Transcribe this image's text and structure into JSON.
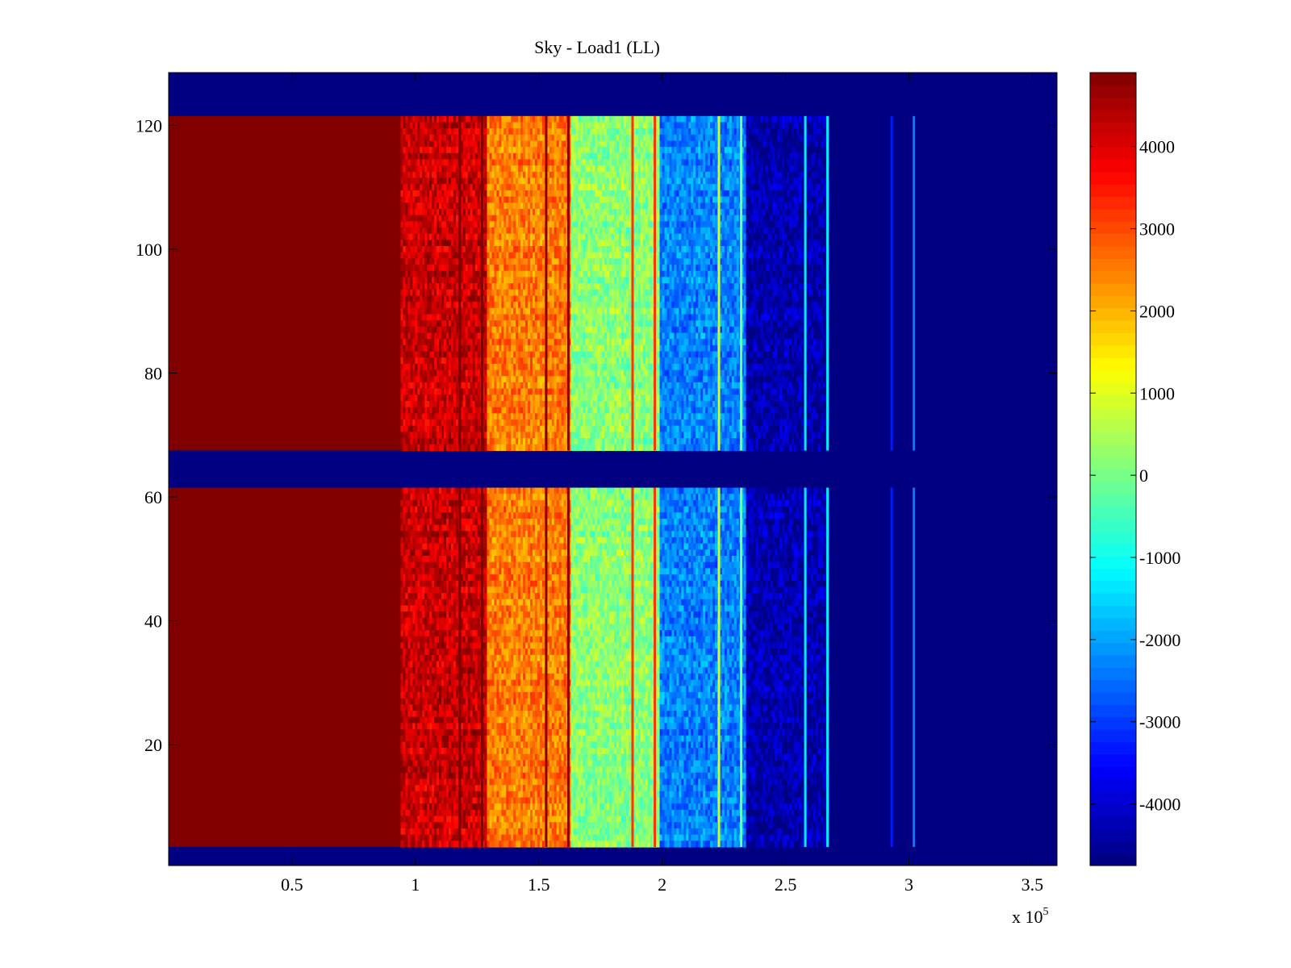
{
  "chart_data": {
    "type": "heatmap",
    "title": "Sky - Load1 (LL)",
    "colormap": "jet",
    "x_axis": {
      "range": [
        0,
        360000
      ],
      "ticks": [
        50000,
        100000,
        150000,
        200000,
        250000,
        300000,
        350000
      ],
      "tick_labels": [
        "0.5",
        "1",
        "1.5",
        "2",
        "2.5",
        "3",
        "3.5"
      ],
      "multiplier_label": "x 10",
      "multiplier_exponent": "5"
    },
    "y_axis": {
      "range": [
        0.5,
        128.5
      ],
      "ticks": [
        20,
        40,
        60,
        80,
        100,
        120
      ],
      "tick_labels": [
        "20",
        "40",
        "60",
        "80",
        "100",
        "120"
      ]
    },
    "colorbar": {
      "range": [
        -4750,
        4900
      ],
      "ticks": [
        -4000,
        -3000,
        -2000,
        -1000,
        0,
        1000,
        2000,
        3000,
        4000
      ],
      "tick_labels": [
        "-4000",
        "-3000",
        "-2000",
        "-1000",
        "0",
        "1000",
        "2000",
        "3000",
        "4000"
      ]
    },
    "row_blocks": [
      {
        "rows": [
          1,
          3
        ],
        "fill": "min"
      },
      {
        "rows": [
          4,
          61
        ],
        "fill": "data"
      },
      {
        "rows": [
          62,
          67
        ],
        "fill": "min"
      },
      {
        "rows": [
          68,
          121
        ],
        "fill": "data"
      },
      {
        "rows": [
          122,
          128
        ],
        "fill": "min"
      }
    ],
    "column_bands": [
      {
        "x": [
          0,
          94000
        ],
        "value": 4900
      },
      {
        "x": [
          94000,
          129000
        ],
        "value": 4200
      },
      {
        "x": [
          129000,
          163000
        ],
        "value": 2500
      },
      {
        "x": [
          163000,
          199000
        ],
        "value": 200
      },
      {
        "x": [
          199000,
          234000
        ],
        "value": -2300
      },
      {
        "x": [
          234000,
          268000
        ],
        "value": -4300
      },
      {
        "x": [
          268000,
          360000
        ],
        "value": -4750
      }
    ],
    "vertical_lines": [
      {
        "x": 118000,
        "value": 4900
      },
      {
        "x": 127000,
        "value": 4900
      },
      {
        "x": 153000,
        "value": 4800
      },
      {
        "x": 162000,
        "value": 4800
      },
      {
        "x": 188000,
        "value": 3200
      },
      {
        "x": 197000,
        "value": 3200
      },
      {
        "x": 223000,
        "value": 800
      },
      {
        "x": 232000,
        "value": 0
      },
      {
        "x": 258000,
        "value": -1300
      },
      {
        "x": 267000,
        "value": -1300
      },
      {
        "x": 293000,
        "value": -3300
      },
      {
        "x": 302000,
        "value": -2400
      }
    ]
  }
}
